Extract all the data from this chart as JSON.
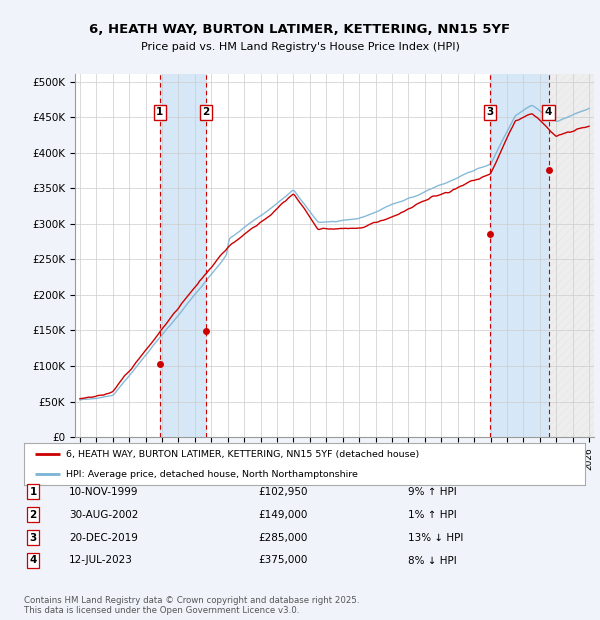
{
  "title": "6, HEATH WAY, BURTON LATIMER, KETTERING, NN15 5YF",
  "subtitle": "Price paid vs. HM Land Registry's House Price Index (HPI)",
  "ylabel_ticks": [
    "£0",
    "£50K",
    "£100K",
    "£150K",
    "£200K",
    "£250K",
    "£300K",
    "£350K",
    "£400K",
    "£450K",
    "£500K"
  ],
  "ytick_vals": [
    0,
    50000,
    100000,
    150000,
    200000,
    250000,
    300000,
    350000,
    400000,
    450000,
    500000
  ],
  "ylim": [
    0,
    510000
  ],
  "xlim_start": 1994.7,
  "xlim_end": 2026.3,
  "sale_dates": [
    1999.86,
    2002.66,
    2019.97,
    2023.53
  ],
  "sale_prices": [
    102950,
    149000,
    285000,
    375000
  ],
  "sale_labels": [
    "1",
    "2",
    "3",
    "4"
  ],
  "sale_info": [
    {
      "num": "1",
      "date": "10-NOV-1999",
      "price": "£102,950",
      "relation": "9% ↑ HPI"
    },
    {
      "num": "2",
      "date": "30-AUG-2002",
      "price": "£149,000",
      "relation": "1% ↑ HPI"
    },
    {
      "num": "3",
      "date": "20-DEC-2019",
      "price": "£285,000",
      "relation": "13% ↓ HPI"
    },
    {
      "num": "4",
      "date": "12-JUL-2023",
      "price": "£375,000",
      "relation": "8% ↓ HPI"
    }
  ],
  "legend_items": [
    {
      "label": "6, HEATH WAY, BURTON LATIMER, KETTERING, NN15 5YF (detached house)",
      "color": "#cc0000",
      "lw": 1.5
    },
    {
      "label": "HPI: Average price, detached house, North Northamptonshire",
      "color": "#7ab3d4",
      "lw": 1.5
    }
  ],
  "footer": "Contains HM Land Registry data © Crown copyright and database right 2025.\nThis data is licensed under the Open Government Licence v3.0.",
  "bg_color": "#f0f4fa",
  "plot_bg": "#ffffff",
  "grid_color": "#cccccc",
  "vline_color": "#cc0000",
  "box_color": "#cc0000",
  "sale_region_color": "#d6e8f7",
  "hatch_region_color": "#d0d0d0"
}
